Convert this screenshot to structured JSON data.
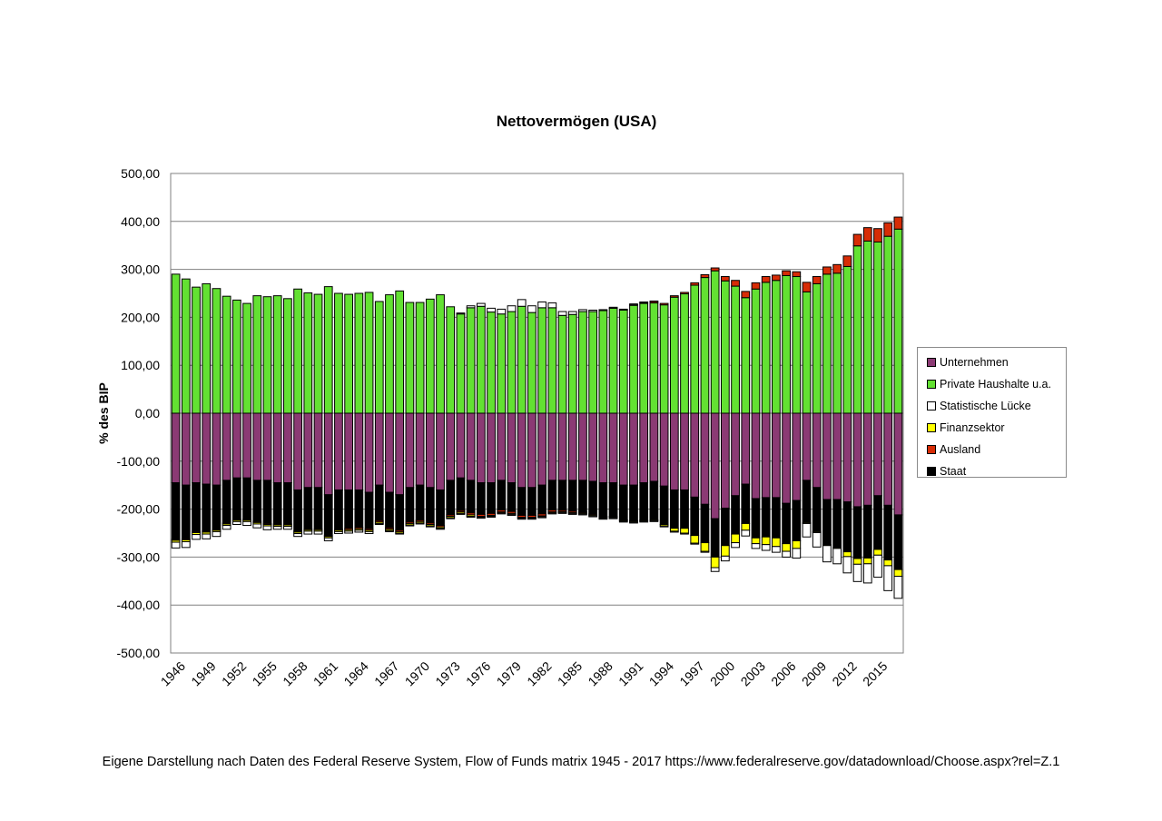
{
  "source_note": "Eigene Darstellung nach Daten des Federal Reserve System, Flow of Funds matrix 1945 - 2017 https://www.federalreserve.gov/datadownload/Choose.aspx?rel=Z.1",
  "chart_data": {
    "type": "bar",
    "stacked": true,
    "title": "Nettovermögen (USA)",
    "xlabel": "",
    "ylabel": "% des BIP",
    "ylim": [
      -500,
      500
    ],
    "yticks": [
      "500,00",
      "400,00",
      "300,00",
      "200,00",
      "100,00",
      "0,00",
      "-100,00",
      "-200,00",
      "-300,00",
      "-400,00",
      "-500,00"
    ],
    "grid": true,
    "legend_position": "right",
    "categories": [
      "1946",
      "1947",
      "1948",
      "1949",
      "1950",
      "1951",
      "1952",
      "1953",
      "1954",
      "1955",
      "1956",
      "1957",
      "1958",
      "1959",
      "1960",
      "1961",
      "1962",
      "1963",
      "1964",
      "1965",
      "1966",
      "1967",
      "1968",
      "1969",
      "1970",
      "1971",
      "1972",
      "1973",
      "1974",
      "1975",
      "1976",
      "1977",
      "1978",
      "1979",
      "1980",
      "1981",
      "1982",
      "1983",
      "1984",
      "1985",
      "1986",
      "1987",
      "1988",
      "1989",
      "1990",
      "1991",
      "1992",
      "1993",
      "1994",
      "1995",
      "1996",
      "1997",
      "1998",
      "1999",
      "2000",
      "2001",
      "2002",
      "2003",
      "2004",
      "2005",
      "2006",
      "2007",
      "2008",
      "2009",
      "2010",
      "2011",
      "2012",
      "2013",
      "2014",
      "2015",
      "2016",
      "2017"
    ],
    "tick_labels": [
      "1946",
      "1949",
      "1952",
      "1955",
      "1958",
      "1961",
      "1964",
      "1967",
      "1970",
      "1973",
      "1976",
      "1979",
      "1982",
      "1985",
      "1988",
      "1991",
      "1994",
      "1997",
      "2000",
      "2003",
      "2006",
      "2009",
      "2012",
      "2015"
    ],
    "series": [
      {
        "name": "Unternehmen",
        "color": "#8b3a74",
        "values": [
          -145,
          -150,
          -145,
          -148,
          -150,
          -140,
          -135,
          -135,
          -140,
          -140,
          -145,
          -145,
          -160,
          -155,
          -155,
          -170,
          -160,
          -160,
          -160,
          -165,
          -150,
          -165,
          -170,
          -155,
          -150,
          -155,
          -160,
          -140,
          -135,
          -140,
          -145,
          -145,
          -140,
          -145,
          -155,
          -155,
          -150,
          -140,
          -140,
          -140,
          -140,
          -142,
          -145,
          -145,
          -150,
          -150,
          -145,
          -142,
          -152,
          -160,
          -160,
          -175,
          -190,
          -220,
          -198,
          -172,
          -148,
          -178,
          -176,
          -176,
          -188,
          -182,
          -140,
          -155,
          -180,
          -180,
          -185,
          -195,
          -192,
          -172,
          -192,
          -212
        ]
      },
      {
        "name": "Staat",
        "color": "#000000",
        "values": [
          -118,
          -112,
          -102,
          -98,
          -92,
          -89,
          -86,
          -86,
          -86,
          -90,
          -86,
          -86,
          -86,
          -86,
          -86,
          -85,
          -82,
          -80,
          -78,
          -76,
          -74,
          -74,
          -74,
          -72,
          -73,
          -74,
          -74,
          -72,
          -68,
          -68,
          -66,
          -64,
          -62,
          -60,
          -58,
          -58,
          -60,
          -62,
          -62,
          -64,
          -66,
          -68,
          -70,
          -70,
          -72,
          -74,
          -78,
          -80,
          -80,
          -80,
          -80,
          -80,
          -80,
          -80,
          -78,
          -80,
          -82,
          -82,
          -82,
          -84,
          -84,
          -84,
          -88,
          -92,
          -94,
          -100,
          -104,
          -108,
          -110,
          -112,
          -114,
          -114
        ]
      },
      {
        "name": "Ausland",
        "color": "#d72c06",
        "values": [
          -2,
          -2,
          -2,
          -2,
          -2,
          -2,
          -2,
          -2,
          -2,
          -2,
          -2,
          -2,
          -2,
          -2,
          -2,
          -2,
          -2,
          -3,
          -3,
          -3,
          -3,
          -3,
          -3,
          -3,
          -3,
          -3,
          -3,
          -3,
          -3,
          -4,
          -4,
          -4,
          -4,
          -4,
          -4,
          -4,
          -4,
          -4,
          -3,
          -3,
          -2,
          -2,
          -2,
          -1,
          -1,
          -1,
          0,
          0,
          0,
          0,
          0,
          0,
          0,
          0,
          0,
          0,
          0,
          0,
          0,
          0,
          0,
          0,
          0,
          0,
          0,
          0,
          0,
          0,
          0,
          0,
          0,
          0
        ]
      },
      {
        "name": "Finanzsektor",
        "color": "#ffff00",
        "values": [
          -4,
          -4,
          -4,
          -4,
          -3,
          -3,
          -3,
          -3,
          -3,
          -3,
          -3,
          -3,
          -3,
          -3,
          -3,
          -3,
          -3,
          -3,
          -3,
          -3,
          -3,
          -3,
          -3,
          -3,
          -3,
          -3,
          -3,
          -3,
          -3,
          -3,
          -2,
          -2,
          -2,
          -2,
          -2,
          -2,
          -2,
          -2,
          -2,
          -2,
          -2,
          -2,
          -2,
          -2,
          -2,
          -2,
          -2,
          -2,
          -3,
          -6,
          -10,
          -16,
          -18,
          -22,
          -22,
          -18,
          -14,
          -12,
          -16,
          -18,
          -16,
          -16,
          -2,
          -2,
          -2,
          -2,
          -10,
          -12,
          -12,
          -12,
          -12,
          -14
        ]
      },
      {
        "name": "Statistische Lücke",
        "color": "#ffffff",
        "values": [
          -12,
          -12,
          -10,
          -10,
          -10,
          -8,
          -6,
          -8,
          -8,
          -8,
          -6,
          -6,
          -6,
          -6,
          -6,
          -6,
          -4,
          -4,
          -4,
          -4,
          -2,
          -2,
          -2,
          -2,
          -2,
          -2,
          -2,
          -2,
          -2,
          -2,
          -2,
          -2,
          -2,
          -2,
          -2,
          -2,
          -2,
          -2,
          -2,
          -2,
          -2,
          -2,
          -2,
          -2,
          -2,
          -2,
          -2,
          -2,
          -2,
          -2,
          -2,
          -2,
          -2,
          -8,
          -10,
          -10,
          -12,
          -10,
          -12,
          -12,
          -12,
          -20,
          -28,
          -30,
          -34,
          -32,
          -34,
          -36,
          -40,
          -46,
          -52,
          -46
        ]
      },
      {
        "name": "Private Haushalte u.a.",
        "color": "#63e132",
        "values": [
          290,
          280,
          263,
          270,
          260,
          244,
          236,
          229,
          245,
          243,
          245,
          239,
          259,
          251,
          248,
          264,
          250,
          248,
          250,
          252,
          233,
          247,
          255,
          231,
          231,
          238,
          247,
          222,
          207,
          220,
          223,
          211,
          207,
          212,
          223,
          210,
          220,
          220,
          204,
          206,
          212,
          212,
          214,
          219,
          215,
          225,
          229,
          230,
          226,
          242,
          249,
          267,
          283,
          297,
          276,
          265,
          241,
          259,
          273,
          277,
          287,
          285,
          253,
          270,
          290,
          292,
          306,
          349,
          359,
          357,
          369,
          384
        ]
      },
      {
        "name": "Ausland",
        "color": "#d72c06",
        "values": [
          0,
          0,
          0,
          0,
          0,
          0,
          0,
          0,
          0,
          0,
          0,
          0,
          0,
          0,
          0,
          0,
          0,
          0,
          0,
          0,
          0,
          0,
          0,
          0,
          0,
          0,
          0,
          0,
          0,
          0,
          0,
          0,
          0,
          0,
          0,
          0,
          0,
          0,
          0,
          0,
          0,
          0,
          0,
          0,
          0,
          1,
          2,
          3,
          3,
          3,
          3,
          5,
          6,
          6,
          9,
          12,
          13,
          13,
          12,
          11,
          10,
          10,
          20,
          15,
          15,
          18,
          22,
          24,
          28,
          28,
          28,
          25
        ]
      },
      {
        "name": "Statistische Lücke",
        "color": "#ffffff",
        "values": [
          0,
          0,
          0,
          0,
          0,
          0,
          0,
          0,
          0,
          0,
          0,
          0,
          0,
          0,
          0,
          0,
          0,
          0,
          0,
          0,
          0,
          0,
          0,
          0,
          0,
          0,
          0,
          0,
          2,
          4,
          6,
          8,
          10,
          12,
          14,
          14,
          12,
          10,
          8,
          6,
          4,
          3,
          2,
          2,
          2,
          2,
          1,
          1,
          0,
          0,
          0,
          0,
          0,
          0,
          0,
          0,
          0,
          0,
          0,
          0,
          0,
          0,
          0,
          0,
          0,
          0,
          0,
          0,
          0,
          0,
          0,
          0
        ]
      }
    ],
    "legend": [
      {
        "name": "Unternehmen",
        "color": "#8b3a74"
      },
      {
        "name": "Private Haushalte u.a.",
        "color": "#63e132"
      },
      {
        "name": "Statistische Lücke",
        "color": "#ffffff"
      },
      {
        "name": "Finanzsektor",
        "color": "#ffff00"
      },
      {
        "name": "Ausland",
        "color": "#d72c06"
      },
      {
        "name": "Staat",
        "color": "#000000"
      }
    ]
  }
}
